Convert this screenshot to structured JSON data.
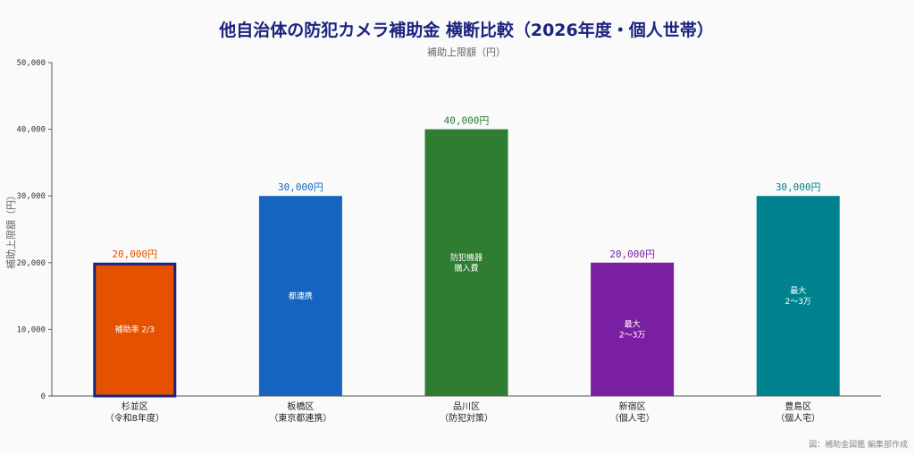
{
  "chart_data": {
    "type": "bar",
    "title": "他自治体の防犯カメラ補助金 横断比較（2026年度・個人世帯）",
    "subtitle": "補助上限額（円）",
    "ylabel": "補助上限額（円）",
    "xlabel": "",
    "ylim": [
      0,
      50000
    ],
    "yticks": [
      0,
      10000,
      20000,
      30000,
      40000,
      50000
    ],
    "ytick_labels": [
      "0",
      "10,000",
      "20,000",
      "30,000",
      "40,000",
      "50,000"
    ],
    "grid": false,
    "categories": [
      [
        "杉並区",
        "（令和8年度）"
      ],
      [
        "板橋区",
        "（東京都連携）"
      ],
      [
        "品川区",
        "（防犯対策）"
      ],
      [
        "新宿区",
        "（個人宅）"
      ],
      [
        "豊島区",
        "（個人宅）"
      ]
    ],
    "values": [
      20000,
      30000,
      40000,
      20000,
      30000
    ],
    "value_labels": [
      "20,000円",
      "30,000円",
      "40,000円",
      "20,000円",
      "30,000円"
    ],
    "bar_notes": [
      [
        "補助率 2/3"
      ],
      [
        "都連携"
      ],
      [
        "防犯機器",
        "購入費"
      ],
      [
        "最大",
        "2〜3万"
      ],
      [
        "最大",
        "2〜3万"
      ]
    ],
    "colors": [
      "#e65100",
      "#1565c0",
      "#2e7d32",
      "#7b1fa2",
      "#00838f"
    ],
    "highlight_index": 0,
    "highlight_border": "#1a237e",
    "title_color": "#1a237e",
    "axis_color": "#555555",
    "credit": "図：補助金図鑑 編集部作成"
  }
}
